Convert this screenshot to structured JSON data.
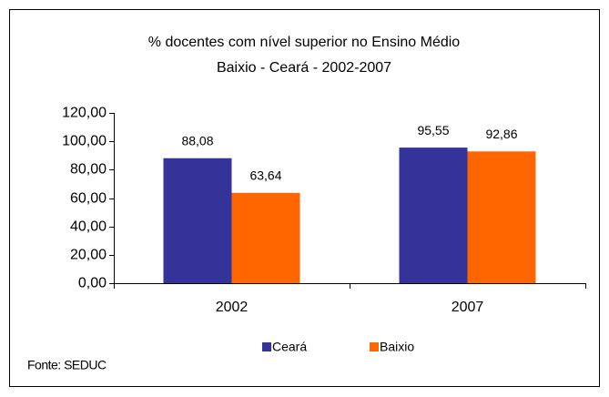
{
  "chart_data": {
    "type": "bar",
    "title": "% docentes com nível superior no Ensino Médio",
    "subtitle": "Baixio - Ceará - 2002-2007",
    "categories": [
      "2002",
      "2007"
    ],
    "series": [
      {
        "name": "Ceará",
        "color": "#333399",
        "values": [
          88.08,
          95.55
        ],
        "value_labels": [
          "88,08",
          "95,55"
        ]
      },
      {
        "name": "Baixio",
        "color": "#ff6600",
        "values": [
          63.64,
          92.86
        ],
        "value_labels": [
          "63,64",
          "92,86"
        ]
      }
    ],
    "ylim": [
      0,
      120
    ],
    "yticks": [
      {
        "value": 0,
        "label": "0,00"
      },
      {
        "value": 20,
        "label": "20,00"
      },
      {
        "value": 40,
        "label": "40,00"
      },
      {
        "value": 60,
        "label": "60,00"
      },
      {
        "value": 80,
        "label": "80,00"
      },
      {
        "value": 100,
        "label": "100,00"
      },
      {
        "value": 120,
        "label": "120,00"
      }
    ],
    "grid": false,
    "legend": "bottom",
    "source": "Fonte: SEDUC"
  }
}
